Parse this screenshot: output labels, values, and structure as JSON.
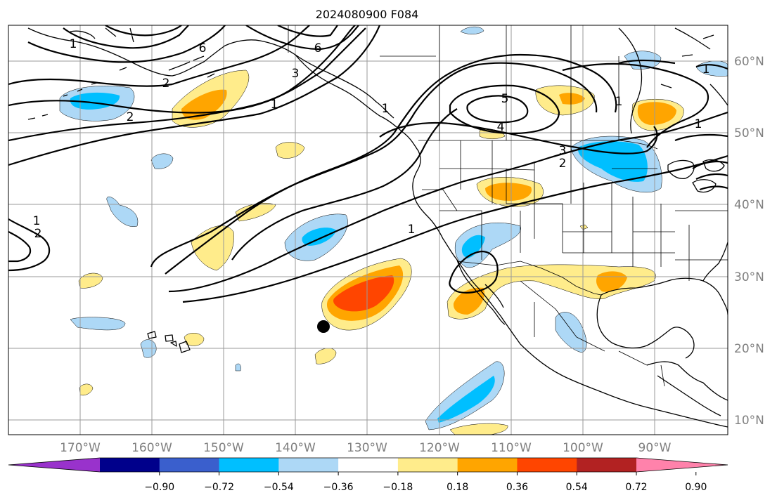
{
  "title": "2024080900 F084",
  "longitude_ticks": [
    "170°W",
    "160°W",
    "150°W",
    "140°W",
    "130°W",
    "120°W",
    "110°W",
    "100°W",
    "90°W"
  ],
  "latitude_ticks": [
    "60°N",
    "50°N",
    "40°N",
    "30°N",
    "20°N",
    "10°N"
  ],
  "colorbar": {
    "colors": [
      "#9932cc",
      "#00008b",
      "#3a5fcd",
      "#00bfff",
      "#add8f6",
      "#ffffff",
      "#ffec8b",
      "#ffa500",
      "#ff4500",
      "#b22222",
      "#ff82ab"
    ],
    "labels": [
      "−0.90",
      "−0.72",
      "−0.54",
      "−0.36",
      "−0.18",
      "0.18",
      "0.36",
      "0.54",
      "0.72",
      "0.90"
    ]
  },
  "contour_labels": [
    "6",
    "6",
    "3",
    "1",
    "2",
    "1",
    "1",
    "2",
    "5",
    "4",
    "3",
    "2",
    "1",
    "1",
    "1",
    "1",
    "1",
    "2"
  ],
  "marker": {
    "name": "storm-position",
    "longitude": -136,
    "latitude": 23
  }
}
